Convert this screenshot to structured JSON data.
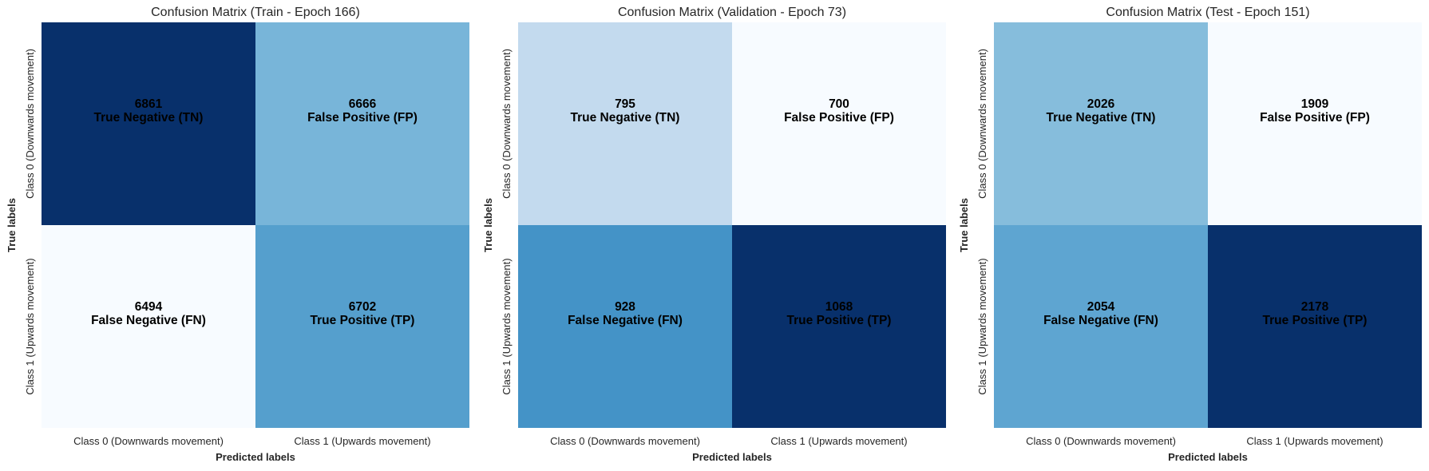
{
  "chart_data": [
    {
      "type": "heatmap",
      "title": "Confusion Matrix (Train - Epoch 166)",
      "xlabel": "Predicted labels",
      "ylabel": "True labels",
      "x_categories": [
        "Class 0 (Downwards movement)",
        "Class 1 (Upwards movement)"
      ],
      "y_categories": [
        "Class 0 (Downwards movement)",
        "Class 1 (Upwards movement)"
      ],
      "values": [
        [
          6861,
          6666
        ],
        [
          6494,
          6702
        ]
      ],
      "cell_labels": [
        [
          "True Negative (TN)",
          "False Positive (FP)"
        ],
        [
          "False Negative (FN)",
          "True Positive (TP)"
        ]
      ],
      "colormap": "Blues"
    },
    {
      "type": "heatmap",
      "title": "Confusion Matrix (Validation - Epoch 73)",
      "xlabel": "Predicted labels",
      "ylabel": "True labels",
      "x_categories": [
        "Class 0 (Downwards movement)",
        "Class 1 (Upwards movement)"
      ],
      "y_categories": [
        "Class 0 (Downwards movement)",
        "Class 1 (Upwards movement)"
      ],
      "values": [
        [
          795,
          700
        ],
        [
          928,
          1068
        ]
      ],
      "cell_labels": [
        [
          "True Negative (TN)",
          "False Positive (FP)"
        ],
        [
          "False Negative (FN)",
          "True Positive (TP)"
        ]
      ],
      "colormap": "Blues"
    },
    {
      "type": "heatmap",
      "title": "Confusion Matrix (Test - Epoch 151)",
      "xlabel": "Predicted labels",
      "ylabel": "True labels",
      "x_categories": [
        "Class 0 (Downwards movement)",
        "Class 1 (Upwards movement)"
      ],
      "y_categories": [
        "Class 0 (Downwards movement)",
        "Class 1 (Upwards movement)"
      ],
      "values": [
        [
          2026,
          1909
        ],
        [
          2054,
          2178
        ]
      ],
      "cell_labels": [
        [
          "True Negative (TN)",
          "False Positive (FP)"
        ],
        [
          "False Negative (FN)",
          "True Positive (TP)"
        ]
      ],
      "colormap": "Blues"
    }
  ]
}
